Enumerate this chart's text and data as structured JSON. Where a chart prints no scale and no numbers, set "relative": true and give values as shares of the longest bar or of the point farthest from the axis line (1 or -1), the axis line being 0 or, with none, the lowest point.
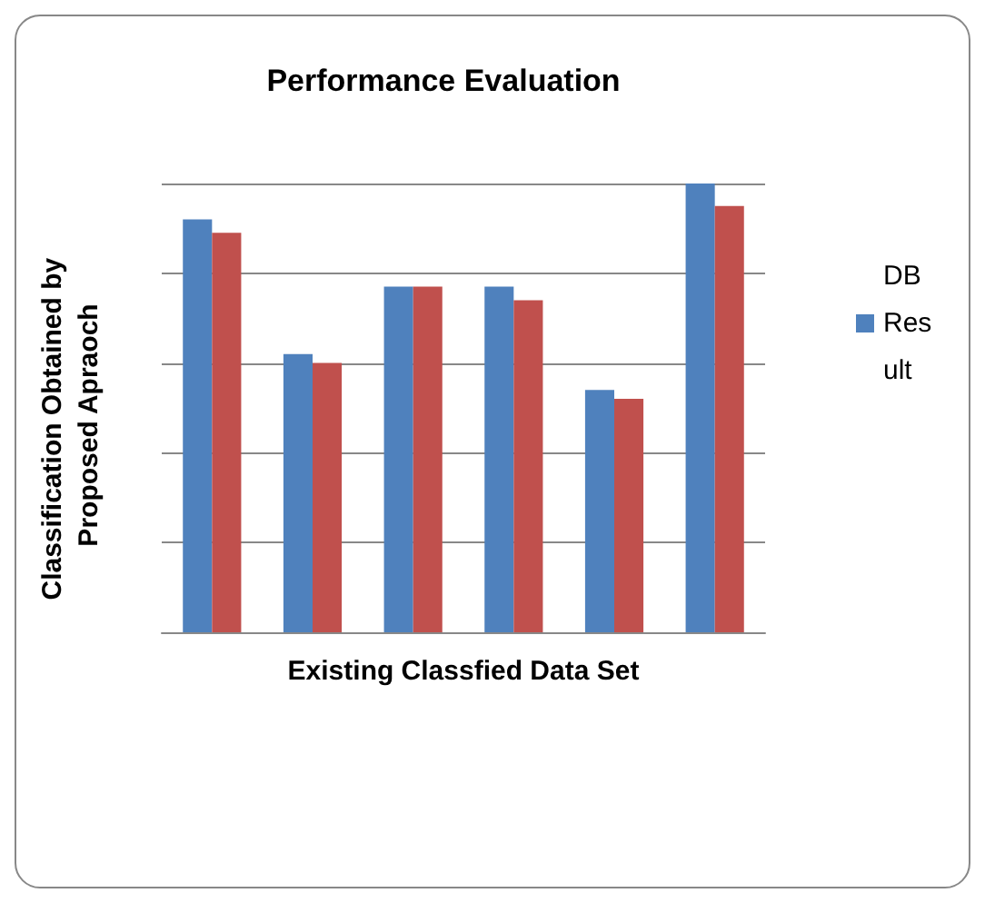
{
  "chart_data": {
    "type": "bar",
    "title": "Performance Evaluation",
    "xlabel": "Existing Classfied Data Set",
    "ylabel": "Classification Obtained by Proposed Apraoch",
    "categories": [
      null,
      null,
      null,
      null,
      null,
      null
    ],
    "relative": true,
    "grid": "y",
    "legend": "right",
    "series": [
      {
        "name": "DB Result",
        "color": "#4f81bd",
        "values": [
          0.92,
          0.62,
          0.77,
          0.77,
          0.54,
          1
        ]
      },
      {
        "color": "#c0504d",
        "values": [
          0.89,
          0.6,
          0.77,
          0.74,
          0.52,
          0.95
        ]
      }
    ]
  }
}
